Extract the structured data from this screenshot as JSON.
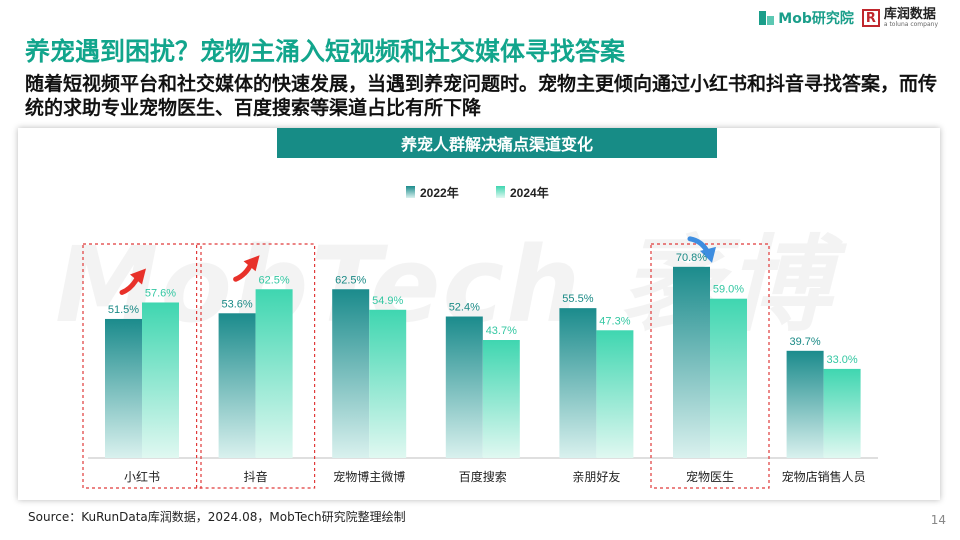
{
  "logos": {
    "mob": "Mob研究院",
    "kurun_name": "库润数据",
    "kurun_sub": "a toluna company"
  },
  "title": "养宠遇到困扰？宠物主涌入短视频和社交媒体寻找答案",
  "subtitle": "随着短视频平台和社交媒体的快速发展，当遇到养宠问题时。宠物主更倾向通过小红书和抖音寻找答案，而传统的求助专业宠物医生、百度搜索等渠道占比有所下降",
  "watermark": "MobTech 袤博",
  "source": "Source：KuRunData库润数据，2024.08，MobTech研究院整理绘制",
  "page_number": "14",
  "chart_data": {
    "type": "bar",
    "title": "养宠人群解决痛点渠道变化",
    "categories": [
      "小红书",
      "抖音",
      "宠物博主微博",
      "百度搜索",
      "亲朋好友",
      "宠物医生",
      "宠物店销售人员"
    ],
    "series": [
      {
        "name": "2022年",
        "values": [
          51.5,
          53.6,
          62.5,
          52.4,
          55.5,
          70.8,
          39.7
        ],
        "labels": [
          "51.5%",
          "53.6%",
          "62.5%",
          "52.4%",
          "55.5%",
          "70.8%",
          "39.7%"
        ]
      },
      {
        "name": "2024年",
        "values": [
          57.6,
          62.5,
          54.9,
          43.7,
          47.3,
          59.0,
          33.0
        ],
        "labels": [
          "57.6%",
          "62.5%",
          "54.9%",
          "43.7%",
          "47.3%",
          "59.0%",
          "33.0%"
        ]
      }
    ],
    "ylim": [
      0,
      100
    ],
    "grid": false,
    "legend": "top-center",
    "highlights": [
      {
        "category": "小红书",
        "trend": "up"
      },
      {
        "category": "抖音",
        "trend": "up"
      },
      {
        "category": "宠物医生",
        "trend": "down"
      }
    ],
    "colors": {
      "series_2022": [
        "#1b8b8c",
        "#d9f1ee"
      ],
      "series_2024": [
        "#3fd6b0",
        "#e0f8f1"
      ],
      "label_2022": "#1a8a86",
      "label_2024": "#33c7a2",
      "up_arrow": "#e8312a",
      "down_arrow": "#3d8de0",
      "highlight_border": "#e03a3a",
      "axis": "#bfbfbf"
    }
  }
}
